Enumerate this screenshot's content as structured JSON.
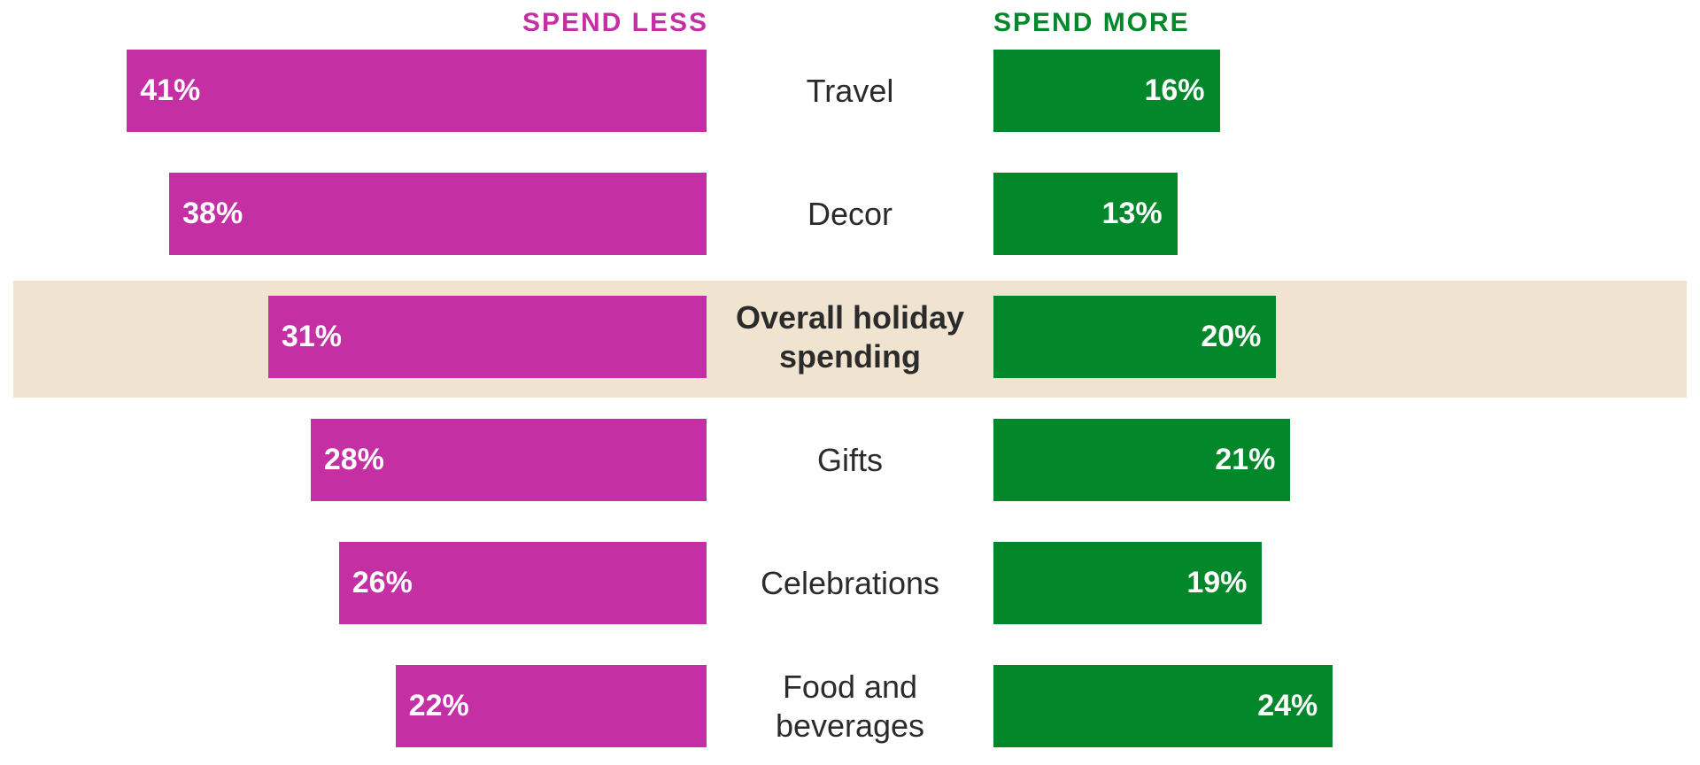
{
  "chart_data": {
    "type": "bar",
    "title": "",
    "header_left": "SPEND LESS",
    "header_right": "SPEND MORE",
    "categories": [
      "Travel",
      "Decor",
      "Overall holiday spending",
      "Gifts",
      "Celebrations",
      "Food and beverages"
    ],
    "category_lines": [
      [
        "Travel"
      ],
      [
        "Decor"
      ],
      [
        "Overall holiday",
        "spending"
      ],
      [
        "Gifts"
      ],
      [
        "Celebrations"
      ],
      [
        "Food and",
        "beverages"
      ]
    ],
    "highlight_category": "Overall holiday spending",
    "series": [
      {
        "name": "SPEND LESS",
        "values": [
          41,
          38,
          31,
          28,
          26,
          22
        ],
        "labels": [
          "41%",
          "38%",
          "31%",
          "28%",
          "26%",
          "22%"
        ],
        "color": "#c430a4"
      },
      {
        "name": "SPEND MORE",
        "values": [
          16,
          13,
          20,
          21,
          19,
          24
        ],
        "labels": [
          "16%",
          "13%",
          "20%",
          "21%",
          "19%",
          "24%"
        ],
        "color": "#03872b"
      }
    ],
    "unit": "%",
    "highlight_color": "#f0e4d1",
    "text_color": "#2b2b2b"
  }
}
